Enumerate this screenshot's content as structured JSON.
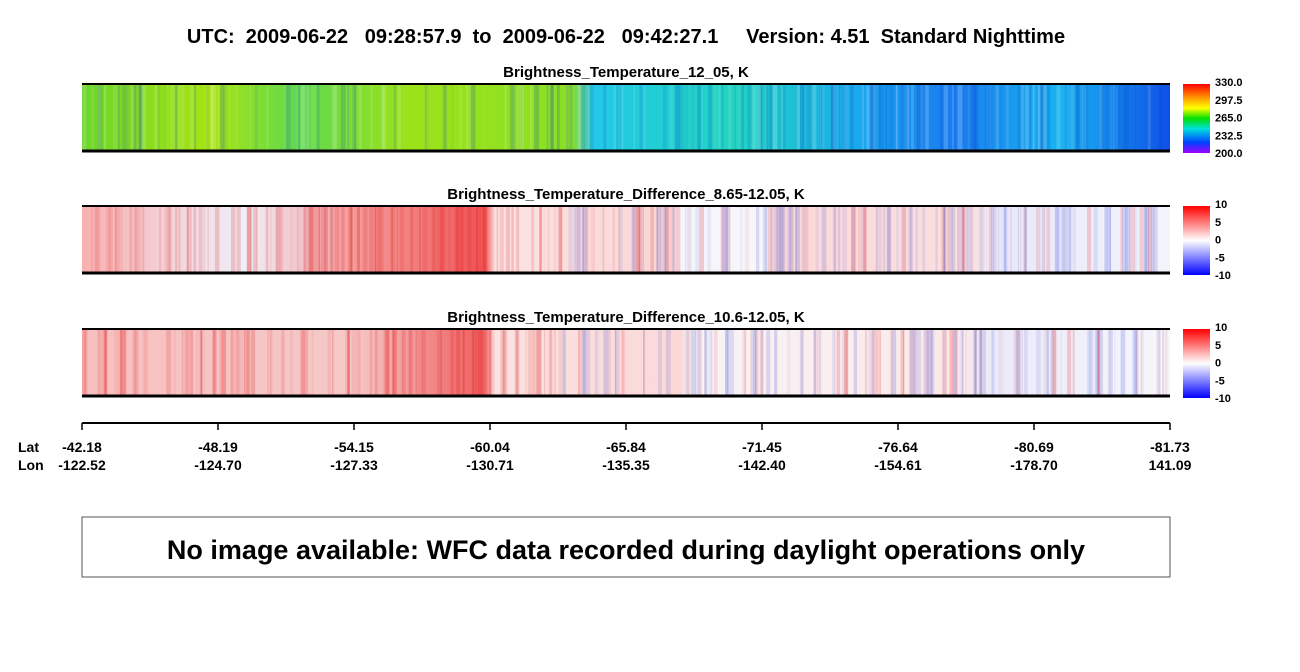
{
  "title": "UTC:  2009-06-22   09:28:57.9  to  2009-06-22   09:42:27.1     Version: 4.51  Standard Nighttime",
  "panels": [
    {
      "title": "Brightness_Temperature_12_05, K",
      "colorbar_labels": [
        "330.0",
        "297.5",
        "265.0",
        "232.5",
        "200.0"
      ]
    },
    {
      "title": "Brightness_Temperature_Difference_8.65-12.05, K",
      "colorbar_labels": [
        "10",
        "5",
        "0",
        "-5",
        "-10"
      ]
    },
    {
      "title": "Brightness_Temperature_Difference_10.6-12.05, K",
      "colorbar_labels": [
        "10",
        "5",
        "0",
        "-5",
        "-10"
      ]
    }
  ],
  "axis": {
    "lat_label": "Lat",
    "lon_label": "Lon",
    "lat": [
      "-42.18",
      "-48.19",
      "-54.15",
      "-60.04",
      "-65.84",
      "-71.45",
      "-76.64",
      "-80.69",
      "-81.73"
    ],
    "lon": [
      "-122.52",
      "-124.70",
      "-127.33",
      "-130.71",
      "-135.35",
      "-142.40",
      "-154.61",
      "-178.70",
      "141.09"
    ]
  },
  "message": "No image available: WFC data recorded during daylight operations only"
}
